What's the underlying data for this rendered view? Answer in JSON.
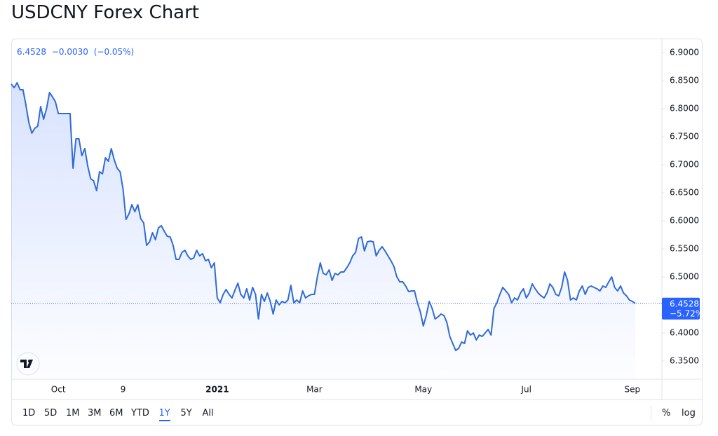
{
  "chart_data": {
    "type": "line",
    "title": "USDCNY Forex Chart",
    "quote": {
      "price": "6.4528",
      "change": "−0.0030",
      "change_percent": "(−0.05%)"
    },
    "last_label": {
      "price": "6.4528",
      "change_percent": "−5.72%"
    },
    "categories": [
      null,
      null,
      null,
      null,
      null,
      null,
      null,
      null,
      null,
      null,
      null,
      null,
      null,
      null,
      null,
      null,
      "Oct",
      null,
      null,
      null,
      null,
      null,
      null,
      null,
      null,
      null,
      null,
      null,
      null,
      null,
      null,
      null,
      null,
      null,
      null,
      null,
      null,
      null,
      "9",
      null,
      null,
      null,
      null,
      null,
      null,
      null,
      null,
      null,
      null,
      null,
      null,
      null,
      null,
      null,
      null,
      null,
      null,
      null,
      null,
      null,
      null,
      null,
      null,
      null,
      null,
      null,
      null,
      null,
      null,
      null,
      "2021",
      null,
      null,
      null,
      null,
      null,
      null,
      null,
      null,
      null,
      null,
      null,
      null,
      null,
      null,
      null,
      null,
      null,
      null,
      null,
      null,
      null,
      null,
      null,
      null,
      null,
      null,
      null,
      null,
      null,
      null,
      null,
      null,
      "Mar",
      null,
      null,
      null,
      null,
      null,
      null,
      null,
      null,
      null,
      null,
      null,
      null,
      null,
      null,
      null,
      null,
      null,
      null,
      null,
      null,
      null,
      null,
      null,
      null,
      null,
      null,
      null,
      null,
      null,
      null,
      null,
      null,
      null,
      null,
      null,
      null,
      "May",
      null,
      null,
      null,
      null,
      null,
      null,
      null,
      null,
      null,
      null,
      null,
      null,
      null,
      null,
      null,
      null,
      null,
      null,
      null,
      null,
      null,
      null,
      null,
      null,
      null,
      null,
      null,
      null,
      null,
      null,
      null,
      null,
      null,
      null,
      "Jul",
      null,
      null,
      null,
      null,
      null,
      null,
      null,
      null,
      null,
      null,
      null,
      null,
      null,
      null,
      null,
      null,
      null,
      null,
      null,
      null,
      null,
      null,
      null,
      null,
      null,
      null,
      null,
      null,
      null,
      null,
      null,
      null,
      null,
      null,
      null,
      "Sep",
      null
    ],
    "series": [
      {
        "name": "USDCNY",
        "color": "#2f6bd8",
        "values": [
          6.8438,
          6.8375,
          6.8463,
          6.8338,
          6.8338,
          6.8063,
          6.775,
          6.7563,
          6.765,
          6.7688,
          6.8038,
          6.7813,
          6.8,
          6.8288,
          6.8213,
          6.8125,
          6.7913,
          6.7913,
          6.7913,
          6.7913,
          6.7913,
          6.6938,
          6.7463,
          6.7463,
          6.7163,
          6.7288,
          6.6975,
          6.675,
          6.6713,
          6.6538,
          6.6875,
          6.6838,
          6.7125,
          6.7063,
          6.7288,
          6.7088,
          6.6938,
          6.6875,
          6.6563,
          6.6025,
          6.6125,
          6.6288,
          6.6163,
          6.6288,
          6.6038,
          6.5963,
          6.5563,
          6.5625,
          6.5788,
          6.5663,
          6.5875,
          6.5913,
          6.5813,
          6.5725,
          6.5713,
          6.5563,
          6.5313,
          6.5313,
          6.5438,
          6.5475,
          6.5375,
          6.5313,
          6.5338,
          6.5475,
          6.5375,
          6.5413,
          6.5288,
          6.5313,
          6.5163,
          6.525,
          6.4625,
          6.4538,
          6.4688,
          6.4775,
          6.4688,
          6.4625,
          6.4763,
          6.4888,
          6.4688,
          6.4625,
          6.4788,
          6.4588,
          6.4813,
          6.4688,
          6.425,
          6.4688,
          6.4563,
          6.4713,
          6.4563,
          6.4338,
          6.4588,
          6.45,
          6.4563,
          6.4538,
          6.4588,
          6.485,
          6.4538,
          6.4588,
          6.4538,
          6.475,
          6.4625,
          6.4663,
          6.4688,
          6.4688,
          6.5,
          6.525,
          6.5063,
          6.5038,
          6.5125,
          6.4938,
          6.5063,
          6.5038,
          6.5088,
          6.5088,
          6.5163,
          6.525,
          6.5375,
          6.5438,
          6.5688,
          6.5713,
          6.5463,
          6.5625,
          6.5638,
          6.5625,
          6.5375,
          6.5475,
          6.5538,
          6.5463,
          6.5375,
          6.5288,
          6.5188,
          6.5,
          6.4913,
          6.4913,
          6.4838,
          6.4738,
          6.475,
          6.475,
          6.4538,
          6.4375,
          6.4125,
          6.4313,
          6.4563,
          6.4438,
          6.425,
          6.4288,
          6.4338,
          6.4313,
          6.4188,
          6.3938,
          6.3813,
          6.3688,
          6.3725,
          6.3838,
          6.3813,
          6.4038,
          6.3963,
          6.4,
          6.3875,
          6.3963,
          6.3938,
          6.4,
          6.4063,
          6.3963,
          6.4438,
          6.4538,
          6.4688,
          6.4813,
          6.475,
          6.4688,
          6.4538,
          6.4625,
          6.4588,
          6.4713,
          6.4788,
          6.4625,
          6.4713,
          6.4875,
          6.4788,
          6.4713,
          6.4663,
          6.4625,
          6.4713,
          6.4875,
          6.4813,
          6.4688,
          6.4663,
          6.4813,
          6.5088,
          6.4938,
          6.4588,
          6.4625,
          6.4588,
          6.475,
          6.4838,
          6.4688,
          6.4813,
          6.4838,
          6.4813,
          6.4788,
          6.475,
          6.4838,
          6.4813,
          6.4913,
          6.5,
          6.4813,
          6.475,
          6.4838,
          6.4713,
          6.4663,
          6.4588,
          6.4563,
          6.4528
        ]
      }
    ],
    "ylim": [
      6.3175,
      6.9238
    ],
    "yticks": [
      {
        "value": 6.9,
        "label": "6.9000"
      },
      {
        "value": 6.85,
        "label": "6.8500"
      },
      {
        "value": 6.8,
        "label": "6.8000"
      },
      {
        "value": 6.75,
        "label": "6.7500"
      },
      {
        "value": 6.7,
        "label": "6.7000"
      },
      {
        "value": 6.65,
        "label": "6.6500"
      },
      {
        "value": 6.6,
        "label": "6.6000"
      },
      {
        "value": 6.55,
        "label": "6.5500"
      },
      {
        "value": 6.5,
        "label": "6.5000"
      },
      {
        "value": 6.45,
        "label": "6.4500"
      },
      {
        "value": 6.4,
        "label": "6.4000"
      },
      {
        "value": 6.35,
        "label": "6.3500"
      }
    ],
    "grid": false,
    "ranges": [
      "1D",
      "5D",
      "1M",
      "3M",
      "6M",
      "YTD",
      "1Y",
      "5Y",
      "All"
    ],
    "active_range": "1Y",
    "scale_buttons": [
      "%",
      "log"
    ]
  }
}
